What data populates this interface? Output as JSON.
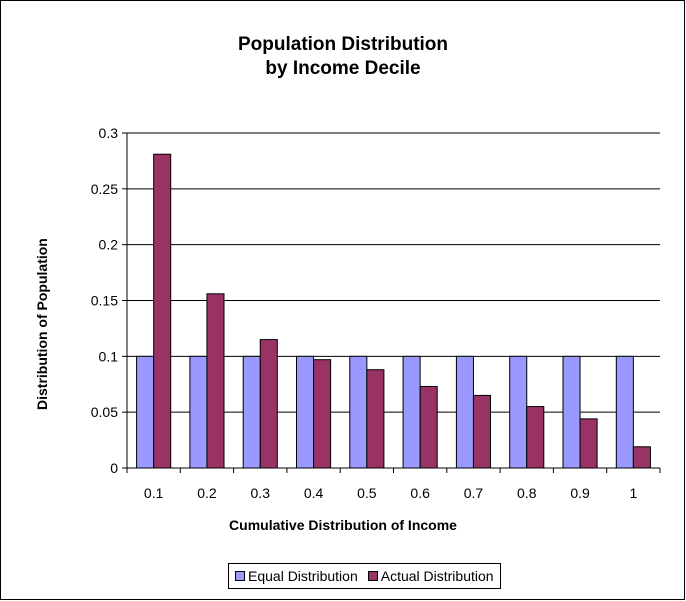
{
  "chart_data": {
    "type": "bar",
    "title": "Population Distribution",
    "subtitle": "by Income Decile",
    "xlabel": "Cumulative Distribution of Income",
    "ylabel": "Distribution of Population",
    "categories": [
      "0.1",
      "0.2",
      "0.3",
      "0.4",
      "0.5",
      "0.6",
      "0.7",
      "0.8",
      "0.9",
      "1"
    ],
    "ylim": [
      0,
      0.3
    ],
    "yticks": [
      "0",
      "0.05",
      "0.1",
      "0.15",
      "0.2",
      "0.25",
      "0.3"
    ],
    "grid": true,
    "legend_position": "bottom",
    "series": [
      {
        "name": "Equal Distribution",
        "color": "#9999ff",
        "values": [
          0.1,
          0.1,
          0.1,
          0.1,
          0.1,
          0.1,
          0.1,
          0.1,
          0.1,
          0.1
        ]
      },
      {
        "name": "Actual Distribution",
        "color": "#993366",
        "values": [
          0.281,
          0.156,
          0.115,
          0.097,
          0.088,
          0.073,
          0.065,
          0.055,
          0.044,
          0.019
        ]
      }
    ]
  }
}
